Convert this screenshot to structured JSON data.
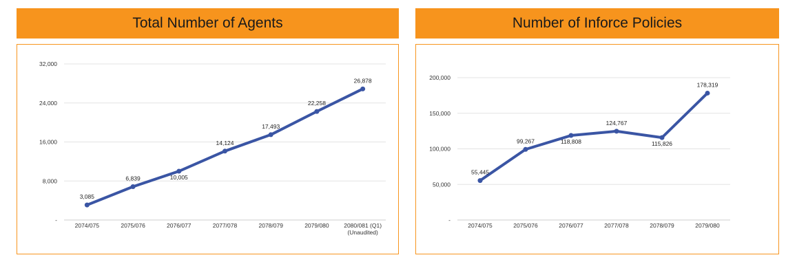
{
  "chart_data": [
    {
      "type": "line",
      "title": "Total Number of Agents",
      "categories": [
        "2074/075",
        "2075/076",
        "2076/077",
        "2077/078",
        "2078/079",
        "2079/080",
        "2080/081 (Q1)\n(Unaudited)"
      ],
      "series": [
        {
          "values": [
            3085,
            6839,
            10005,
            14124,
            17493,
            22258,
            26878
          ]
        }
      ],
      "data_labels": [
        "3,085",
        "6,839",
        "10,005",
        "14,124",
        "17,493",
        "22,258",
        "26,878"
      ],
      "y_ticks": [
        0,
        8000,
        16000,
        24000,
        32000
      ],
      "y_tick_labels": [
        "-",
        "8,000",
        "16,000",
        "24,000",
        "32,000"
      ],
      "ylim": [
        0,
        32000
      ],
      "grid": true,
      "line_color": "#3A55A4"
    },
    {
      "type": "line",
      "title": "Number of Inforce Policies",
      "categories": [
        "2074/075",
        "2075/076",
        "2076/077",
        "2077/078",
        "2078/079",
        "2079/080"
      ],
      "series": [
        {
          "values": [
            55445,
            99267,
            118808,
            124767,
            115826,
            178319
          ]
        }
      ],
      "data_labels": [
        "55,445",
        "99,267",
        "118,808",
        "124,767",
        "115,826",
        "178,319"
      ],
      "y_ticks": [
        0,
        50000,
        100000,
        150000,
        200000
      ],
      "y_tick_labels": [
        "-",
        "50,000",
        "100,000",
        "150,000",
        "200,000"
      ],
      "ylim": [
        0,
        200000
      ],
      "grid": true,
      "line_color": "#3A55A4"
    }
  ],
  "banner_color": "#F7941D"
}
